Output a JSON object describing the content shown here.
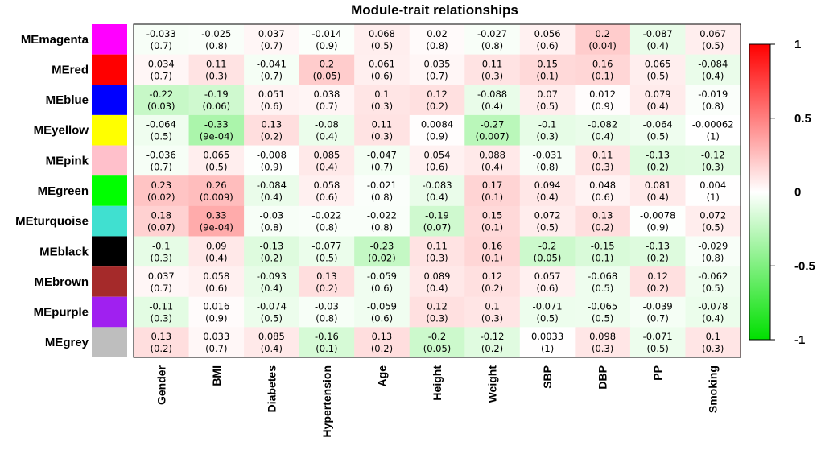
{
  "chart_data": {
    "type": "heatmap",
    "title": "Module-trait relationships",
    "rows": [
      "MEmagenta",
      "MEred",
      "MEblue",
      "MEyellow",
      "MEpink",
      "MEgreen",
      "MEturquoise",
      "MEblack",
      "MEbrown",
      "MEpurple",
      "MEgrey"
    ],
    "row_colors": [
      "#ff00ff",
      "#ff0000",
      "#0000ff",
      "#ffff00",
      "#ffc0cb",
      "#00ff00",
      "#40e0d0",
      "#000000",
      "#a52a2a",
      "#a020f0",
      "#bebebe"
    ],
    "columns": [
      "Gender",
      "BMI",
      "Diabetes",
      "Hypertension",
      "Age",
      "Height",
      "Weight",
      "SBP",
      "DBP",
      "PP",
      "Smoking"
    ],
    "values": [
      [
        -0.033,
        -0.025,
        0.037,
        -0.014,
        0.068,
        0.02,
        -0.027,
        0.056,
        0.2,
        -0.087,
        0.067
      ],
      [
        0.034,
        0.11,
        -0.041,
        0.2,
        0.061,
        0.035,
        0.11,
        0.15,
        0.16,
        0.065,
        -0.084
      ],
      [
        -0.22,
        -0.19,
        0.051,
        0.038,
        0.1,
        0.12,
        -0.088,
        0.07,
        0.012,
        0.079,
        -0.019
      ],
      [
        -0.064,
        -0.33,
        0.13,
        -0.08,
        0.11,
        0.0084,
        -0.27,
        -0.1,
        -0.082,
        -0.064,
        -0.00062
      ],
      [
        -0.036,
        0.065,
        -0.008,
        0.085,
        -0.047,
        0.054,
        0.088,
        -0.031,
        0.11,
        -0.13,
        -0.12
      ],
      [
        0.23,
        0.26,
        -0.084,
        0.058,
        -0.021,
        -0.083,
        0.17,
        0.094,
        0.048,
        0.081,
        0.004
      ],
      [
        0.18,
        0.33,
        -0.03,
        -0.022,
        -0.022,
        -0.19,
        0.15,
        0.072,
        0.13,
        -0.0078,
        0.072
      ],
      [
        -0.1,
        0.09,
        -0.13,
        -0.077,
        -0.23,
        0.11,
        0.16,
        -0.2,
        -0.15,
        -0.13,
        -0.029
      ],
      [
        0.037,
        0.058,
        -0.093,
        0.13,
        -0.059,
        0.089,
        0.12,
        0.057,
        -0.068,
        0.12,
        -0.062
      ],
      [
        -0.11,
        0.016,
        -0.074,
        -0.03,
        -0.059,
        0.12,
        0.1,
        -0.071,
        -0.065,
        -0.039,
        -0.078
      ],
      [
        0.13,
        0.033,
        0.085,
        -0.16,
        0.13,
        -0.2,
        -0.12,
        0.0033,
        0.098,
        -0.071,
        0.1
      ]
    ],
    "value_labels": [
      [
        "-0.033",
        "-0.025",
        "0.037",
        "-0.014",
        "0.068",
        "0.02",
        "-0.027",
        "0.056",
        "0.2",
        "-0.087",
        "0.067"
      ],
      [
        "0.034",
        "0.11",
        "-0.041",
        "0.2",
        "0.061",
        "0.035",
        "0.11",
        "0.15",
        "0.16",
        "0.065",
        "-0.084"
      ],
      [
        "-0.22",
        "-0.19",
        "0.051",
        "0.038",
        "0.1",
        "0.12",
        "-0.088",
        "0.07",
        "0.012",
        "0.079",
        "-0.019"
      ],
      [
        "-0.064",
        "-0.33",
        "0.13",
        "-0.08",
        "0.11",
        "0.0084",
        "-0.27",
        "-0.1",
        "-0.082",
        "-0.064",
        "-0.00062"
      ],
      [
        "-0.036",
        "0.065",
        "-0.008",
        "0.085",
        "-0.047",
        "0.054",
        "0.088",
        "-0.031",
        "0.11",
        "-0.13",
        "-0.12"
      ],
      [
        "0.23",
        "0.26",
        "-0.084",
        "0.058",
        "-0.021",
        "-0.083",
        "0.17",
        "0.094",
        "0.048",
        "0.081",
        "0.004"
      ],
      [
        "0.18",
        "0.33",
        "-0.03",
        "-0.022",
        "-0.022",
        "-0.19",
        "0.15",
        "0.072",
        "0.13",
        "-0.0078",
        "0.072"
      ],
      [
        "-0.1",
        "0.09",
        "-0.13",
        "-0.077",
        "-0.23",
        "0.11",
        "0.16",
        "-0.2",
        "-0.15",
        "-0.13",
        "-0.029"
      ],
      [
        "0.037",
        "0.058",
        "-0.093",
        "0.13",
        "-0.059",
        "0.089",
        "0.12",
        "0.057",
        "-0.068",
        "0.12",
        "-0.062"
      ],
      [
        "-0.11",
        "0.016",
        "-0.074",
        "-0.03",
        "-0.059",
        "0.12",
        "0.1",
        "-0.071",
        "-0.065",
        "-0.039",
        "-0.078"
      ],
      [
        "0.13",
        "0.033",
        "0.085",
        "-0.16",
        "0.13",
        "-0.2",
        "-0.12",
        "0.0033",
        "0.098",
        "-0.071",
        "0.1"
      ]
    ],
    "p_labels": [
      [
        "(0.7)",
        "(0.8)",
        "(0.7)",
        "(0.9)",
        "(0.5)",
        "(0.8)",
        "(0.8)",
        "(0.6)",
        "(0.04)",
        "(0.4)",
        "(0.5)"
      ],
      [
        "(0.7)",
        "(0.3)",
        "(0.7)",
        "(0.05)",
        "(0.6)",
        "(0.7)",
        "(0.3)",
        "(0.1)",
        "(0.1)",
        "(0.5)",
        "(0.4)"
      ],
      [
        "(0.03)",
        "(0.06)",
        "(0.6)",
        "(0.7)",
        "(0.3)",
        "(0.2)",
        "(0.4)",
        "(0.5)",
        "(0.9)",
        "(0.4)",
        "(0.8)"
      ],
      [
        "(0.5)",
        "(9e-04)",
        "(0.2)",
        "(0.4)",
        "(0.3)",
        "(0.9)",
        "(0.007)",
        "(0.3)",
        "(0.4)",
        "(0.5)",
        "(1)"
      ],
      [
        "(0.7)",
        "(0.5)",
        "(0.9)",
        "(0.4)",
        "(0.7)",
        "(0.6)",
        "(0.4)",
        "(0.8)",
        "(0.3)",
        "(0.2)",
        "(0.3)"
      ],
      [
        "(0.02)",
        "(0.009)",
        "(0.4)",
        "(0.6)",
        "(0.8)",
        "(0.4)",
        "(0.1)",
        "(0.4)",
        "(0.6)",
        "(0.4)",
        "(1)"
      ],
      [
        "(0.07)",
        "(9e-04)",
        "(0.8)",
        "(0.8)",
        "(0.8)",
        "(0.07)",
        "(0.1)",
        "(0.5)",
        "(0.2)",
        "(0.9)",
        "(0.5)"
      ],
      [
        "(0.3)",
        "(0.4)",
        "(0.2)",
        "(0.5)",
        "(0.02)",
        "(0.3)",
        "(0.1)",
        "(0.05)",
        "(0.1)",
        "(0.2)",
        "(0.8)"
      ],
      [
        "(0.7)",
        "(0.6)",
        "(0.4)",
        "(0.2)",
        "(0.6)",
        "(0.4)",
        "(0.2)",
        "(0.6)",
        "(0.5)",
        "(0.2)",
        "(0.5)"
      ],
      [
        "(0.3)",
        "(0.9)",
        "(0.5)",
        "(0.8)",
        "(0.6)",
        "(0.3)",
        "(0.3)",
        "(0.5)",
        "(0.5)",
        "(0.7)",
        "(0.4)"
      ],
      [
        "(0.2)",
        "(0.7)",
        "(0.4)",
        "(0.1)",
        "(0.2)",
        "(0.05)",
        "(0.2)",
        "(1)",
        "(0.3)",
        "(0.5)",
        "(0.3)"
      ]
    ],
    "color_scale": {
      "min": -1,
      "max": 1,
      "low_color": "#00e000",
      "mid_color": "#ffffff",
      "high_color": "#ff0000"
    },
    "legend": {
      "ticks": [
        1,
        0.5,
        0,
        -0.5,
        -1
      ],
      "tick_labels": [
        "1",
        "0.5",
        "0",
        "-0.5",
        "-1"
      ],
      "placement": "right"
    }
  }
}
